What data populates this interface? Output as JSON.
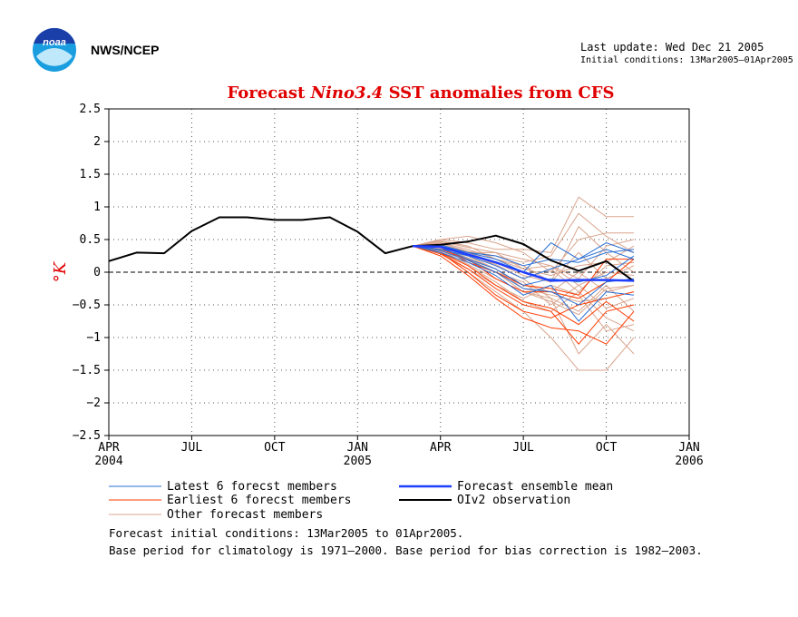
{
  "header": {
    "org": "NWS/NCEP",
    "last_update": "Last update: Wed Dec 21 2005",
    "initial_conditions": "Initial conditions: 13Mar2005–01Apr2005",
    "logo_text": "noaa"
  },
  "legend": {
    "latest": "Latest 6 forecst members",
    "earliest": "Earliest 6 forecst members",
    "other": "Other forecast members",
    "mean": "Forecast ensemble mean",
    "obs": "OIv2 observation"
  },
  "footer": {
    "line1": "Forecast initial conditions: 13Mar2005 to 01Apr2005.",
    "line2": "Base period for climatology is 1971–2000. Base period for bias correction is 1982–2003."
  },
  "colors": {
    "title": "#e00000",
    "latest": "#2a6fd6",
    "earliest": "#ff3b00",
    "other": "#d9a58e",
    "mean": "#1f3fff",
    "obs": "#000000"
  },
  "chart_data": {
    "type": "line",
    "title": {
      "prefix": "Forecast",
      "italic": "Nino3.4",
      "suffix": "SST anomalies from CFS"
    },
    "ylabel": "°K",
    "ylim": [
      -2.5,
      2.5
    ],
    "yticks": [
      "2.5",
      "2",
      "1.5",
      "1",
      "0.5",
      "0",
      "−0.5",
      "−1",
      "−1.5",
      "−2",
      "−2.5"
    ],
    "xlim": [
      "2004-04",
      "2006-01"
    ],
    "xticks": [
      {
        "month": "APR",
        "year": "2004"
      },
      {
        "month": "JUL",
        "year": ""
      },
      {
        "month": "OCT",
        "year": ""
      },
      {
        "month": "JAN",
        "year": "2005"
      },
      {
        "month": "APR",
        "year": ""
      },
      {
        "month": "JUL",
        "year": ""
      },
      {
        "month": "OCT",
        "year": ""
      },
      {
        "month": "JAN",
        "year": "2006"
      }
    ],
    "x_months": [
      "2004-04",
      "2004-05",
      "2004-06",
      "2004-07",
      "2004-08",
      "2004-09",
      "2004-10",
      "2004-11",
      "2004-12",
      "2005-01",
      "2005-02",
      "2005-03",
      "2005-04",
      "2005-05",
      "2005-06",
      "2005-07",
      "2005-08",
      "2005-09",
      "2005-10",
      "2005-11",
      "2005-12",
      "2006-01"
    ],
    "observation": {
      "name": "OIv2 observation",
      "start": "2004-04",
      "values": [
        0.17,
        0.3,
        0.29,
        0.63,
        0.84,
        0.84,
        0.8,
        0.8,
        0.84,
        0.62,
        0.29,
        0.4,
        0.42,
        0.47,
        0.56,
        0.43,
        0.18,
        0.02,
        0.17,
        -0.14
      ]
    },
    "ensemble_mean": {
      "name": "Forecast ensemble mean",
      "start": "2005-03",
      "values": [
        0.4,
        0.39,
        0.27,
        0.15,
        0.0,
        -0.13,
        -0.12,
        -0.12,
        -0.13
      ]
    },
    "latest_members": [
      {
        "start": "2005-03",
        "values": [
          0.4,
          0.4,
          0.3,
          0.2,
          0.0,
          0.45,
          0.2,
          0.45,
          0.3
        ]
      },
      {
        "start": "2005-03",
        "values": [
          0.4,
          0.35,
          0.25,
          0.1,
          -0.1,
          0.05,
          0.2,
          0.35,
          0.2
        ]
      },
      {
        "start": "2005-03",
        "values": [
          0.4,
          0.3,
          0.15,
          -0.05,
          -0.35,
          -0.2,
          -0.75,
          -0.3,
          -0.35
        ]
      },
      {
        "start": "2005-03",
        "values": [
          0.4,
          0.38,
          0.2,
          0.05,
          -0.2,
          -0.1,
          -0.15,
          -0.05,
          0.25
        ]
      },
      {
        "start": "2005-03",
        "values": [
          0.4,
          0.33,
          0.18,
          0.0,
          -0.25,
          -0.3,
          -0.5,
          -0.15,
          -0.1
        ]
      },
      {
        "start": "2005-03",
        "values": [
          0.4,
          0.42,
          0.3,
          0.25,
          0.1,
          0.2,
          0.15,
          0.3,
          0.35
        ]
      }
    ],
    "earliest_members": [
      {
        "start": "2005-03",
        "values": [
          0.4,
          0.3,
          0.0,
          -0.35,
          -0.6,
          -0.7,
          -0.5,
          -0.4,
          -0.3
        ]
      },
      {
        "start": "2005-03",
        "values": [
          0.4,
          0.35,
          0.2,
          -0.1,
          -0.3,
          -0.3,
          -0.4,
          -0.15,
          0.2
        ]
      },
      {
        "start": "2005-03",
        "values": [
          0.4,
          0.25,
          -0.05,
          -0.4,
          -0.7,
          -0.85,
          -0.9,
          -1.1,
          -0.6
        ]
      },
      {
        "start": "2005-03",
        "values": [
          0.4,
          0.3,
          0.1,
          -0.2,
          -0.45,
          -0.55,
          -0.8,
          -0.45,
          -0.75
        ]
      },
      {
        "start": "2005-03",
        "values": [
          0.4,
          0.38,
          0.15,
          0.0,
          -0.2,
          -0.25,
          -0.35,
          0.2,
          0.2
        ]
      },
      {
        "start": "2005-03",
        "values": [
          0.4,
          0.28,
          0.05,
          -0.25,
          -0.5,
          -0.6,
          -1.1,
          -0.6,
          -0.5
        ]
      }
    ],
    "other_members": [
      {
        "start": "2005-03",
        "values": [
          0.4,
          0.5,
          0.45,
          0.35,
          0.35,
          0.3,
          1.15,
          0.85,
          0.85
        ]
      },
      {
        "start": "2005-03",
        "values": [
          0.4,
          0.45,
          0.3,
          0.1,
          -0.1,
          -0.4,
          -1.25,
          -0.8,
          -1.25
        ]
      },
      {
        "start": "2005-03",
        "values": [
          0.4,
          0.5,
          0.55,
          0.45,
          0.3,
          0.0,
          0.5,
          0.6,
          0.6
        ]
      },
      {
        "start": "2005-03",
        "values": [
          0.4,
          0.3,
          0.0,
          -0.3,
          -0.6,
          -1.0,
          -1.5,
          -1.5,
          -1.0
        ]
      },
      {
        "start": "2005-03",
        "values": [
          0.4,
          0.45,
          0.35,
          0.2,
          0.05,
          0.1,
          -0.1,
          0.4,
          0.5
        ]
      },
      {
        "start": "2005-03",
        "values": [
          0.4,
          0.35,
          0.2,
          0.0,
          -0.3,
          -0.4,
          -0.6,
          -0.2,
          -0.6
        ]
      },
      {
        "start": "2005-03",
        "values": [
          0.4,
          0.42,
          0.3,
          0.15,
          -0.05,
          -0.15,
          0.3,
          -0.1,
          0.1
        ]
      },
      {
        "start": "2005-03",
        "values": [
          0.4,
          0.38,
          0.22,
          0.05,
          -0.2,
          -0.3,
          0.0,
          -0.3,
          -0.2
        ]
      },
      {
        "start": "2005-03",
        "values": [
          0.4,
          0.48,
          0.4,
          0.2,
          0.1,
          -0.15,
          0.7,
          0.3,
          0.0
        ]
      },
      {
        "start": "2005-03",
        "values": [
          0.4,
          0.32,
          0.1,
          -0.15,
          -0.45,
          -0.6,
          -0.3,
          -0.7,
          -0.9
        ]
      },
      {
        "start": "2005-03",
        "values": [
          0.4,
          0.4,
          0.3,
          0.3,
          0.2,
          0.1,
          -0.2,
          0.0,
          -0.05
        ]
      },
      {
        "start": "2005-03",
        "values": [
          0.4,
          0.36,
          0.18,
          0.0,
          -0.15,
          -0.5,
          -0.2,
          -0.55,
          -0.4
        ]
      },
      {
        "start": "2005-03",
        "values": [
          0.4,
          0.44,
          0.32,
          0.25,
          0.15,
          0.25,
          0.9,
          0.55,
          0.3
        ]
      },
      {
        "start": "2005-03",
        "values": [
          0.4,
          0.3,
          0.05,
          -0.2,
          -0.4,
          -0.2,
          -0.35,
          -0.9,
          -0.8
        ]
      },
      {
        "start": "2005-03",
        "values": [
          0.4,
          0.47,
          0.38,
          0.3,
          0.05,
          -0.05,
          0.1,
          0.15,
          0.4
        ]
      },
      {
        "start": "2005-03",
        "values": [
          0.4,
          0.34,
          0.12,
          -0.1,
          -0.3,
          -0.45,
          -0.65,
          -0.25,
          -0.2
        ]
      },
      {
        "start": "2005-03",
        "values": [
          0.4,
          0.43,
          0.28,
          0.12,
          -0.1,
          0.05,
          -0.3,
          0.1,
          0.15
        ]
      },
      {
        "start": "2005-03",
        "values": [
          0.4,
          0.39,
          0.25,
          0.05,
          -0.25,
          -0.35,
          -0.45,
          -0.4,
          -0.3
        ]
      }
    ]
  }
}
